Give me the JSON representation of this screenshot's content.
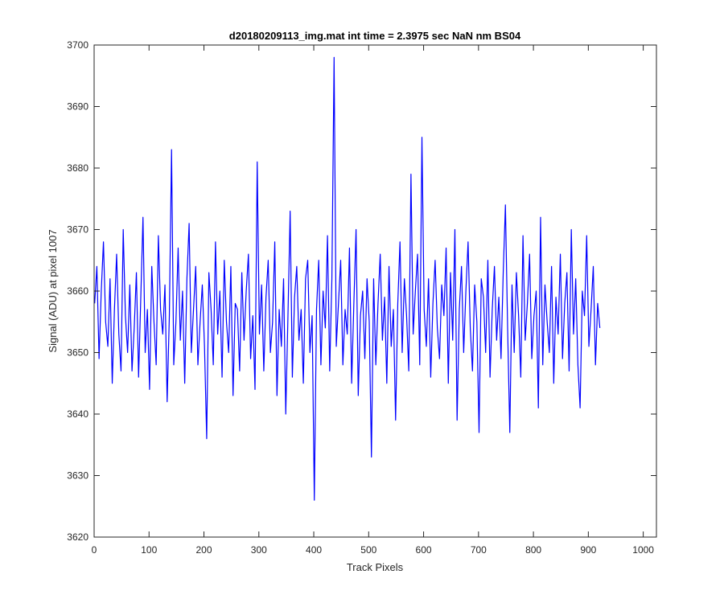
{
  "chart_data": {
    "type": "line",
    "title": "d20180209113_img.mat int time = 2.3975 sec  NaN nm BS04",
    "xlabel": "Track Pixels",
    "ylabel": "Signal (ADU) at pixel 1007",
    "xlim": [
      0,
      1024
    ],
    "ylim": [
      3620,
      3700
    ],
    "xticks": [
      0,
      100,
      200,
      300,
      400,
      500,
      600,
      700,
      800,
      900,
      1000
    ],
    "yticks": [
      3620,
      3630,
      3640,
      3650,
      3660,
      3670,
      3680,
      3690,
      3700
    ],
    "grid": false,
    "legend": "none",
    "line_color": "#0000ff",
    "series": [
      {
        "x_start": 1,
        "x_step": 4,
        "values": [
          3658,
          3664,
          3649,
          3660,
          3668,
          3655,
          3651,
          3662,
          3645,
          3657,
          3666,
          3653,
          3647,
          3670,
          3656,
          3650,
          3661,
          3647,
          3654,
          3663,
          3646,
          3659,
          3672,
          3650,
          3657,
          3644,
          3664,
          3655,
          3648,
          3669,
          3657,
          3653,
          3661,
          3642,
          3656,
          3683,
          3648,
          3655,
          3667,
          3652,
          3660,
          3645,
          3662,
          3671,
          3650,
          3657,
          3664,
          3648,
          3655,
          3661,
          3651,
          3636,
          3663,
          3657,
          3648,
          3668,
          3653,
          3660,
          3646,
          3665,
          3655,
          3650,
          3664,
          3643,
          3658,
          3657,
          3647,
          3663,
          3652,
          3660,
          3666,
          3649,
          3656,
          3644,
          3681,
          3653,
          3661,
          3647,
          3659,
          3665,
          3650,
          3655,
          3668,
          3643,
          3657,
          3651,
          3662,
          3640,
          3656,
          3673,
          3646,
          3659,
          3664,
          3652,
          3657,
          3645,
          3662,
          3665,
          3650,
          3656,
          3626,
          3657,
          3665,
          3648,
          3660,
          3654,
          3669,
          3647,
          3662,
          3698,
          3651,
          3658,
          3665,
          3648,
          3657,
          3653,
          3667,
          3645,
          3658,
          3670,
          3643,
          3656,
          3660,
          3649,
          3662,
          3655,
          3633,
          3662,
          3648,
          3658,
          3666,
          3652,
          3659,
          3645,
          3664,
          3651,
          3657,
          3639,
          3658,
          3668,
          3650,
          3662,
          3656,
          3647,
          3679,
          3653,
          3660,
          3666,
          3648,
          3685,
          3657,
          3651,
          3662,
          3646,
          3658,
          3665,
          3654,
          3649,
          3661,
          3656,
          3667,
          3645,
          3663,
          3652,
          3670,
          3639,
          3657,
          3664,
          3650,
          3660,
          3668,
          3654,
          3647,
          3661,
          3655,
          3637,
          3662,
          3659,
          3650,
          3665,
          3646,
          3657,
          3664,
          3652,
          3659,
          3649,
          3663,
          3674,
          3654,
          3637,
          3661,
          3650,
          3663,
          3656,
          3646,
          3669,
          3652,
          3658,
          3666,
          3649,
          3656,
          3660,
          3641,
          3672,
          3648,
          3661,
          3655,
          3650,
          3664,
          3645,
          3659,
          3653,
          3666,
          3649,
          3658,
          3663,
          3647,
          3670,
          3653,
          3662,
          3648,
          3641,
          3660,
          3656,
          3669,
          3651,
          3657,
          3664,
          3648,
          3658,
          3654
        ]
      }
    ]
  }
}
